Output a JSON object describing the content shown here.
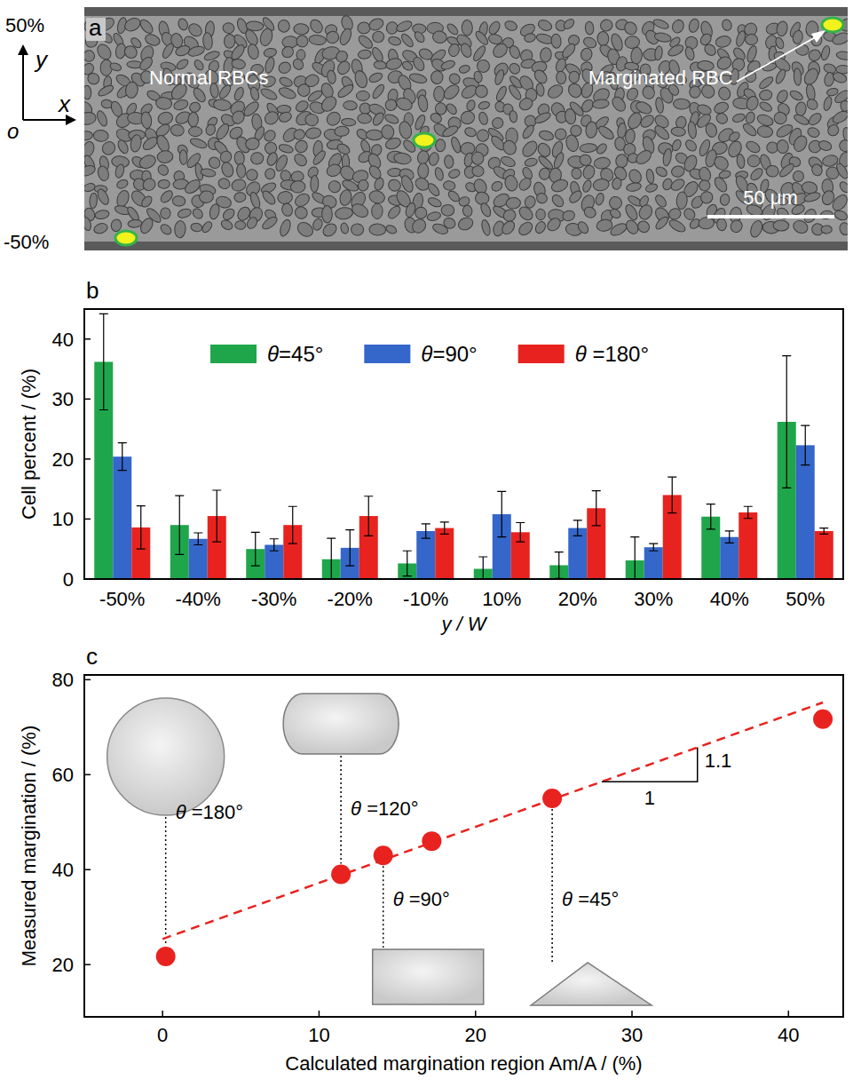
{
  "chart_data": [
    {
      "type": "image",
      "panel": "a",
      "y_labels": [
        "50%",
        "-50%"
      ],
      "axis_labels": [
        "y",
        "x",
        "o"
      ],
      "annotations": [
        "Normal RBCs",
        "Marginated RBC"
      ],
      "scale_bar": "50 μm"
    },
    {
      "type": "bar",
      "panel": "b",
      "x_label": "y / W",
      "y_label": "Cell percent / (%)",
      "categories": [
        "-50%",
        "-40%",
        "-30%",
        "-20%",
        "-10%",
        "10%",
        "20%",
        "30%",
        "40%",
        "50%"
      ],
      "ylim": [
        0,
        45
      ],
      "yticks": [
        0,
        10,
        20,
        30,
        40
      ],
      "legend": "top",
      "series": [
        {
          "name": "θ=45°",
          "color": "#1fa64b",
          "values": [
            36.2,
            9.0,
            5.0,
            3.3,
            2.6,
            1.7,
            2.3,
            3.1,
            10.4,
            26.2
          ],
          "errors": [
            8.0,
            4.9,
            2.8,
            3.5,
            2.1,
            2.0,
            2.2,
            3.9,
            2.1,
            11.0
          ]
        },
        {
          "name": "θ=90°",
          "color": "#3566c9",
          "values": [
            20.4,
            6.7,
            5.7,
            5.2,
            8.0,
            10.8,
            8.5,
            5.3,
            7.0,
            22.3
          ],
          "errors": [
            2.3,
            1.0,
            1.0,
            3.0,
            1.2,
            3.8,
            1.3,
            0.6,
            1.0,
            3.3
          ]
        },
        {
          "name": "θ =180°",
          "color": "#e8231f",
          "values": [
            8.6,
            10.5,
            9.0,
            10.5,
            8.5,
            7.8,
            11.8,
            14.0,
            11.1,
            8.0
          ],
          "errors": [
            3.6,
            4.3,
            3.1,
            3.3,
            1.0,
            1.6,
            2.9,
            3.0,
            1.0,
            0.5
          ]
        }
      ]
    },
    {
      "type": "scatter",
      "panel": "c",
      "x_label": "Calculated margination region Am/A / (%)",
      "y_label": "Measured margination / (%)",
      "xlim": [
        -5,
        43.5
      ],
      "xticks": [
        0,
        10,
        20,
        30,
        40
      ],
      "ylim": [
        9,
        81
      ],
      "yticks": [
        20,
        40,
        60,
        80
      ],
      "series": [
        {
          "type": "scatter",
          "color": "#e8231f",
          "marker": "circle",
          "x": [
            0.2,
            11.4,
            14.1,
            17.2,
            24.9,
            42.2
          ],
          "values": [
            21.7,
            39.0,
            43.0,
            46.0,
            55.0,
            71.7
          ]
        },
        {
          "type": "line",
          "color": "#e8231f",
          "line_style": "dashed",
          "x": [
            0,
            42.2
          ],
          "values": [
            25.4,
            75.2
          ]
        }
      ],
      "annotations": [
        {
          "label": "θ =180°",
          "x": 0.2
        },
        {
          "label": "θ =120°",
          "x": 11.4
        },
        {
          "label": "θ =90°",
          "x": 14.1
        },
        {
          "label": "θ =45°",
          "x": 24.9
        }
      ],
      "slope_labels": [
        "1.1",
        "1"
      ]
    }
  ]
}
